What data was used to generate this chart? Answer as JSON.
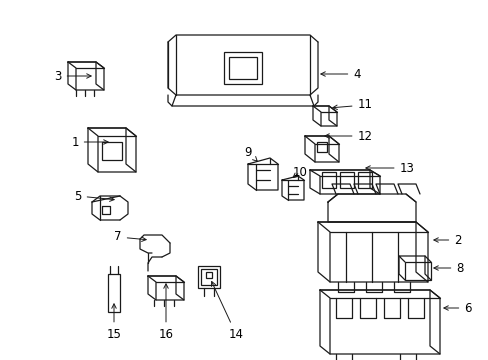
{
  "bg_color": "#ffffff",
  "line_color": "#1a1a1a",
  "text_color": "#000000",
  "label_fontsize": 8.5,
  "figsize": [
    4.89,
    3.6
  ],
  "dpi": 100
}
